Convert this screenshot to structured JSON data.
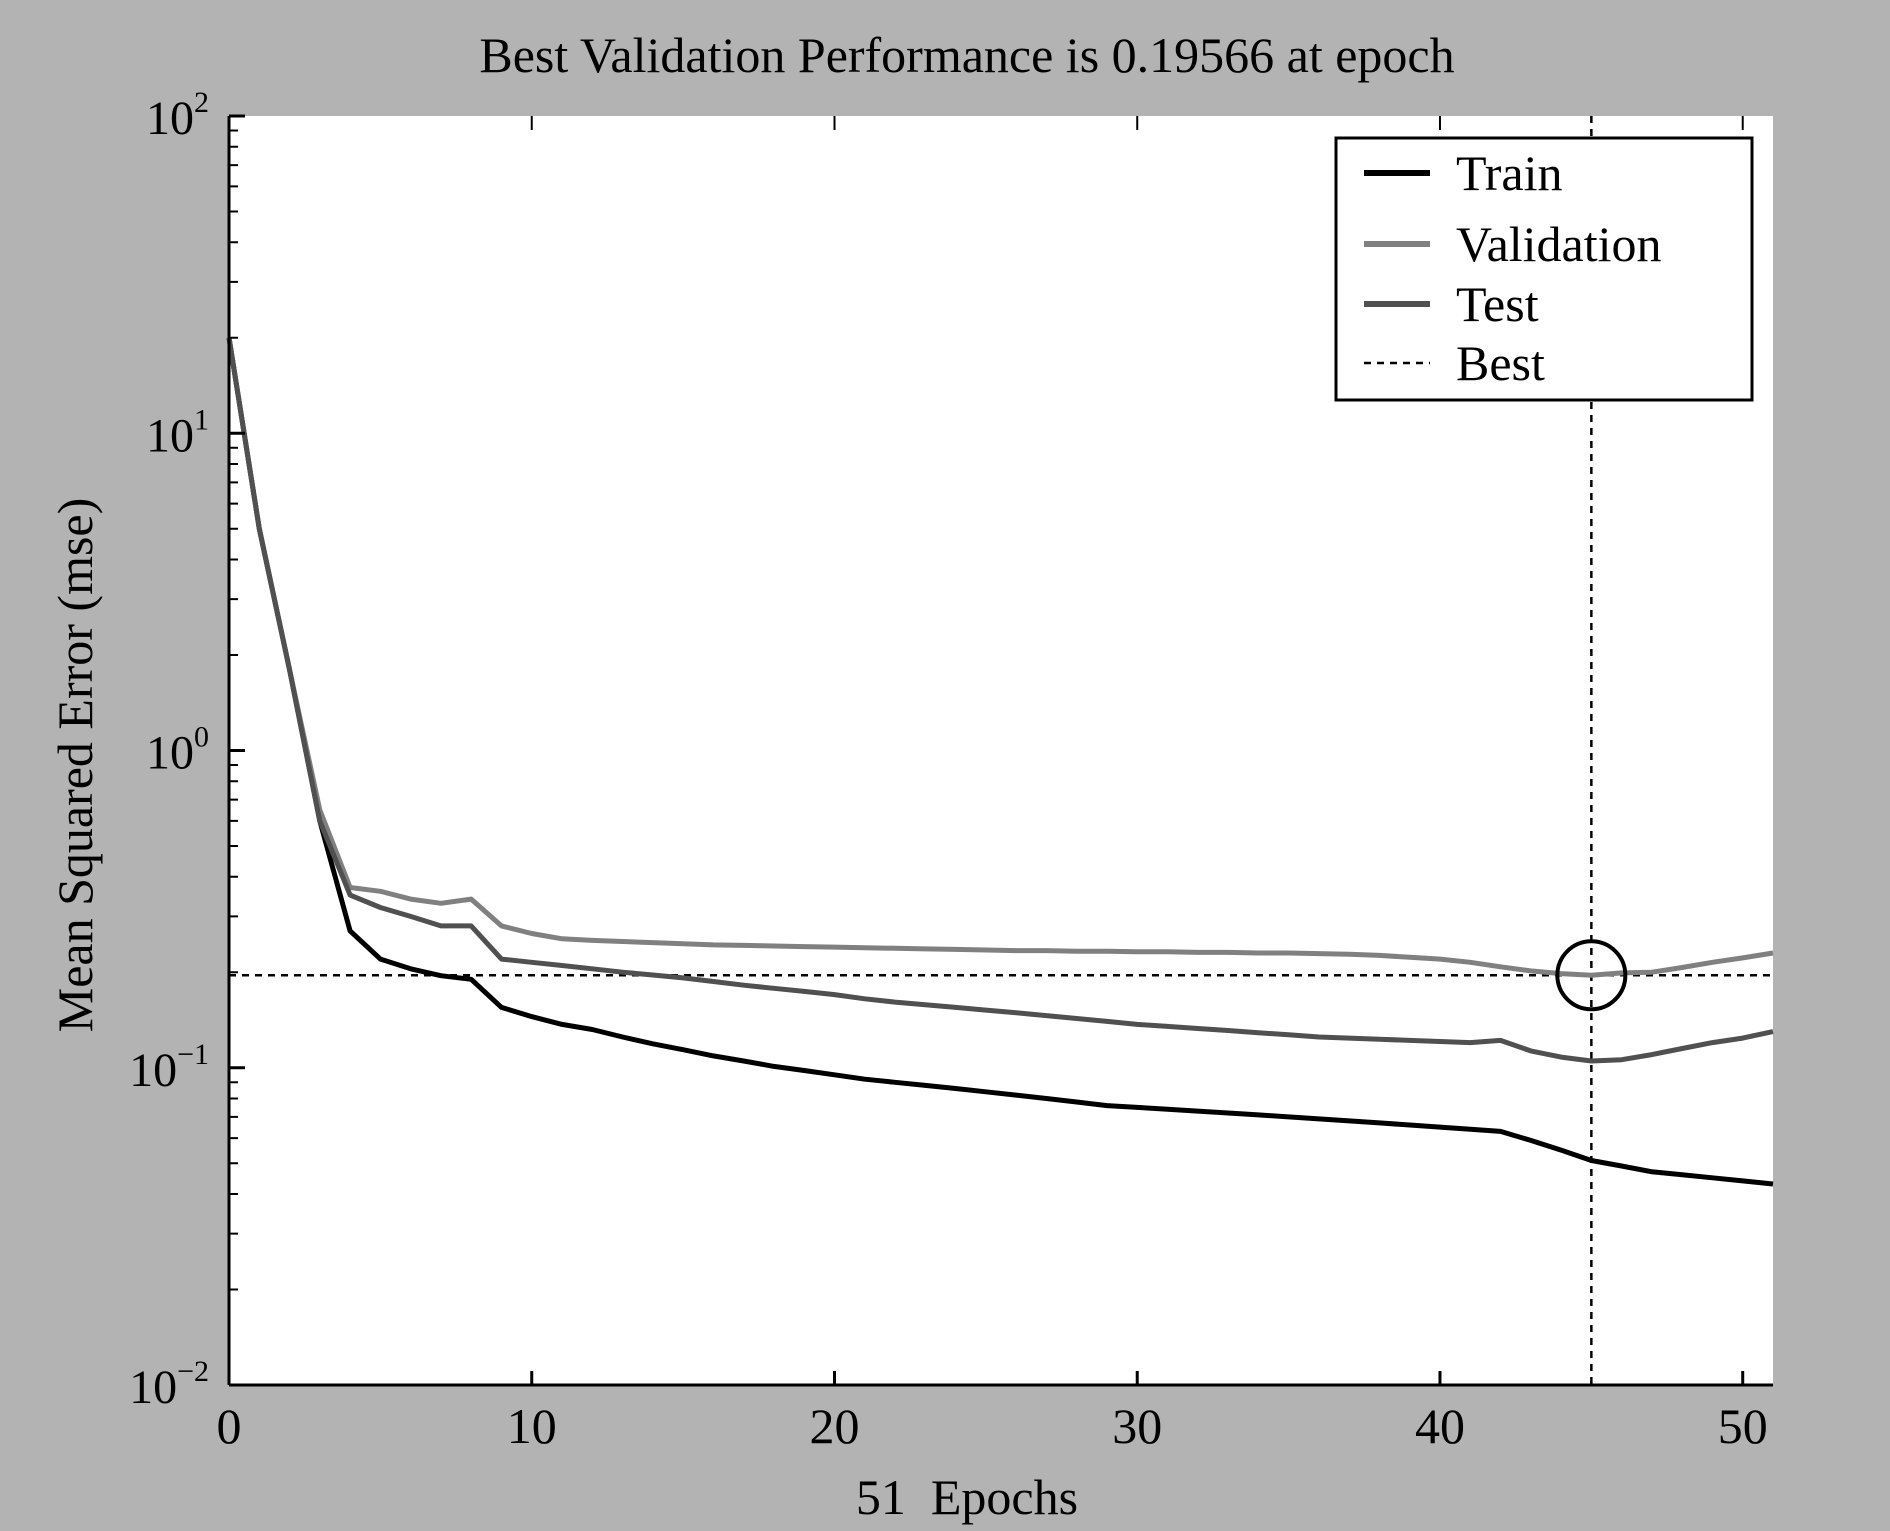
{
  "chart_data": {
    "type": "line",
    "title": "Best Validation Performance is 0.19566 at epoch",
    "xlabel": "51  Epochs",
    "ylabel": "Mean Squared Error (mse)",
    "xlim": [
      0,
      51
    ],
    "ylim": [
      0.01,
      100
    ],
    "yscale": "log",
    "xticks": [
      0,
      10,
      20,
      30,
      40,
      50
    ],
    "xtick_labels": [
      "0",
      "10",
      "20",
      "30",
      "40",
      "50"
    ],
    "yticks": [
      {
        "value": 100,
        "base": "10",
        "exp": "2"
      },
      {
        "value": 10,
        "base": "10",
        "exp": "1"
      },
      {
        "value": 1,
        "base": "10",
        "exp": "0"
      },
      {
        "value": 0.1,
        "base": "10",
        "exp": "−1"
      },
      {
        "value": 0.01,
        "base": "10",
        "exp": "−2"
      }
    ],
    "grid": false,
    "legend_position": "top-right",
    "series": [
      {
        "name": "Train",
        "color": "#000000",
        "x": [
          0,
          1,
          2,
          3,
          4,
          5,
          6,
          7,
          8,
          9,
          10,
          11,
          12,
          13,
          14,
          15,
          16,
          17,
          18,
          19,
          20,
          21,
          22,
          23,
          24,
          25,
          26,
          27,
          28,
          29,
          30,
          31,
          32,
          33,
          34,
          35,
          36,
          37,
          38,
          39,
          40,
          41,
          42,
          43,
          44,
          45,
          46,
          47,
          48,
          49,
          50,
          51
        ],
        "y": [
          20,
          5,
          1.8,
          0.6,
          0.27,
          0.22,
          0.205,
          0.195,
          0.19,
          0.155,
          0.145,
          0.137,
          0.132,
          0.125,
          0.119,
          0.114,
          0.109,
          0.105,
          0.101,
          0.098,
          0.095,
          0.092,
          0.09,
          0.088,
          0.086,
          0.084,
          0.082,
          0.08,
          0.078,
          0.076,
          0.075,
          0.074,
          0.073,
          0.072,
          0.071,
          0.07,
          0.069,
          0.068,
          0.067,
          0.066,
          0.065,
          0.064,
          0.063,
          0.059,
          0.055,
          0.051,
          0.049,
          0.047,
          0.046,
          0.045,
          0.044,
          0.043
        ]
      },
      {
        "name": "Validation",
        "color": "#808080",
        "x": [
          0,
          1,
          2,
          3,
          4,
          5,
          6,
          7,
          8,
          9,
          10,
          11,
          12,
          13,
          14,
          15,
          16,
          17,
          18,
          19,
          20,
          21,
          22,
          23,
          24,
          25,
          26,
          27,
          28,
          29,
          30,
          31,
          32,
          33,
          34,
          35,
          36,
          37,
          38,
          39,
          40,
          41,
          42,
          43,
          44,
          45,
          46,
          47,
          48,
          49,
          50,
          51
        ],
        "y": [
          20,
          5,
          1.8,
          0.65,
          0.37,
          0.36,
          0.34,
          0.33,
          0.34,
          0.28,
          0.265,
          0.255,
          0.252,
          0.25,
          0.248,
          0.246,
          0.244,
          0.243,
          0.242,
          0.241,
          0.24,
          0.239,
          0.238,
          0.237,
          0.236,
          0.235,
          0.234,
          0.234,
          0.233,
          0.233,
          0.232,
          0.232,
          0.231,
          0.231,
          0.23,
          0.23,
          0.229,
          0.228,
          0.226,
          0.223,
          0.22,
          0.215,
          0.208,
          0.202,
          0.198,
          0.19566,
          0.199,
          0.2,
          0.207,
          0.215,
          0.222,
          0.23
        ]
      },
      {
        "name": "Test",
        "color": "#505050",
        "x": [
          0,
          1,
          2,
          3,
          4,
          5,
          6,
          7,
          8,
          9,
          10,
          11,
          12,
          13,
          14,
          15,
          16,
          17,
          18,
          19,
          20,
          21,
          22,
          23,
          24,
          25,
          26,
          27,
          28,
          29,
          30,
          31,
          32,
          33,
          34,
          35,
          36,
          37,
          38,
          39,
          40,
          41,
          42,
          43,
          44,
          45,
          46,
          47,
          48,
          49,
          50,
          51
        ],
        "y": [
          20,
          5,
          1.8,
          0.6,
          0.35,
          0.32,
          0.3,
          0.28,
          0.28,
          0.22,
          0.215,
          0.21,
          0.205,
          0.2,
          0.196,
          0.192,
          0.187,
          0.182,
          0.178,
          0.174,
          0.17,
          0.165,
          0.161,
          0.158,
          0.155,
          0.152,
          0.149,
          0.146,
          0.143,
          0.14,
          0.137,
          0.135,
          0.133,
          0.131,
          0.129,
          0.127,
          0.125,
          0.124,
          0.123,
          0.122,
          0.121,
          0.12,
          0.122,
          0.113,
          0.108,
          0.105,
          0.106,
          0.11,
          0.115,
          0.12,
          0.124,
          0.13
        ]
      }
    ],
    "best": {
      "name": "Best",
      "epoch": 45,
      "value": 0.19566,
      "color": "#000000",
      "style": "dashed"
    },
    "legend": [
      {
        "label": "Train",
        "style": "solid",
        "color": "#000000"
      },
      {
        "label": "Validation",
        "style": "solid",
        "color": "#808080"
      },
      {
        "label": "Test",
        "style": "solid",
        "color": "#505050"
      },
      {
        "label": "Best",
        "style": "dashed",
        "color": "#000000"
      }
    ]
  }
}
